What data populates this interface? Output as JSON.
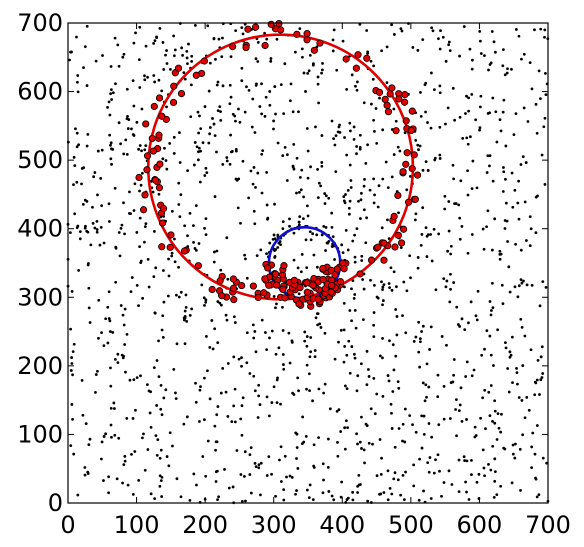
{
  "chart_data": {
    "type": "scatter",
    "title": "",
    "xlabel": "",
    "ylabel": "",
    "xlim": [
      0,
      700
    ],
    "ylim": [
      0,
      700
    ],
    "grid": false,
    "x_ticks": [
      "0",
      "100",
      "200",
      "300",
      "400",
      "500",
      "600",
      "700"
    ],
    "y_ticks": [
      "0",
      "100",
      "200",
      "300",
      "400",
      "500",
      "600",
      "700"
    ],
    "colors": {
      "background_points": "#000000",
      "highlight_points": "#e00000",
      "large_circle": "#e00000",
      "small_circle": "#1010cc"
    },
    "background_points": {
      "count": 1500,
      "distribution": "uniform random over 0-700 x 0-700"
    },
    "circles": [
      {
        "cx": 310,
        "cy": 490,
        "r": 193,
        "color": "#e00000"
      },
      {
        "cx": 345,
        "cy": 350,
        "r": 52,
        "color": "#1010cc"
      }
    ],
    "highlight_points": {
      "description": "red markers sampled near the red circle ring and the lower half of the blue circle",
      "ring_count": 125,
      "cluster_count": 85
    }
  }
}
